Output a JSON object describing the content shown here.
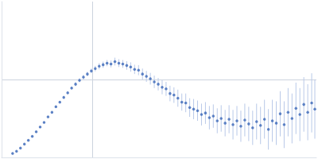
{
  "chart_data": {
    "type": "scatter",
    "x": [
      14,
      19,
      24,
      29,
      34,
      39,
      44,
      49,
      54,
      59,
      64,
      69,
      74,
      79,
      84,
      89,
      94,
      99,
      104,
      109,
      114,
      119,
      124,
      129,
      134,
      139,
      144,
      149,
      154,
      159,
      164,
      169,
      174,
      179,
      184,
      189,
      194,
      199,
      204,
      209,
      214,
      219,
      224,
      229,
      234,
      239,
      244,
      249,
      254,
      259,
      264,
      269,
      274,
      279,
      284,
      289,
      294,
      299,
      304,
      309,
      314,
      319,
      324,
      329,
      334,
      339,
      344,
      349,
      354,
      359,
      364,
      369,
      374,
      379,
      384,
      389,
      394,
      398
    ],
    "values": [
      5,
      8,
      12,
      17,
      22,
      27,
      33,
      39,
      45,
      52,
      58,
      65,
      71,
      77,
      83,
      89,
      94,
      99,
      103,
      107,
      111,
      114,
      117,
      119,
      121,
      120,
      123,
      121,
      120,
      118,
      116,
      113,
      112,
      107,
      104,
      101,
      97,
      94,
      90,
      88,
      82,
      80,
      76,
      71,
      70,
      64,
      62,
      60,
      55,
      57,
      51,
      53,
      47,
      50,
      44,
      49,
      42,
      47,
      40,
      48,
      43,
      38,
      46,
      41,
      49,
      36,
      47,
      44,
      56,
      42,
      58,
      50,
      63,
      55,
      68,
      58,
      70,
      62
    ],
    "errors": [
      1,
      1,
      1,
      1,
      1,
      1,
      1,
      1,
      1,
      1,
      1.5,
      1.5,
      1.5,
      2,
      2,
      2,
      2.5,
      2.5,
      3,
      3,
      3,
      3.5,
      4,
      4,
      4,
      4.5,
      5,
      5,
      5,
      5.5,
      6,
      6,
      6.5,
      7,
      7,
      7.5,
      8,
      8,
      9,
      9,
      10,
      10,
      11,
      11,
      12,
      12,
      13,
      13,
      14,
      14,
      15,
      15,
      16,
      17,
      17,
      18,
      19,
      19,
      20,
      21,
      22,
      22,
      23,
      24,
      25,
      26,
      27,
      28,
      29,
      30,
      31,
      32,
      33,
      34,
      35,
      36,
      38,
      38
    ],
    "color": "#3a66b8",
    "marker": "circle",
    "xlim": [
      0,
      400
    ],
    "xticks": [
      115
    ],
    "ylim": [
      0,
      200
    ],
    "yticks": [
      100
    ],
    "grid": true,
    "tick_labels": false
  }
}
